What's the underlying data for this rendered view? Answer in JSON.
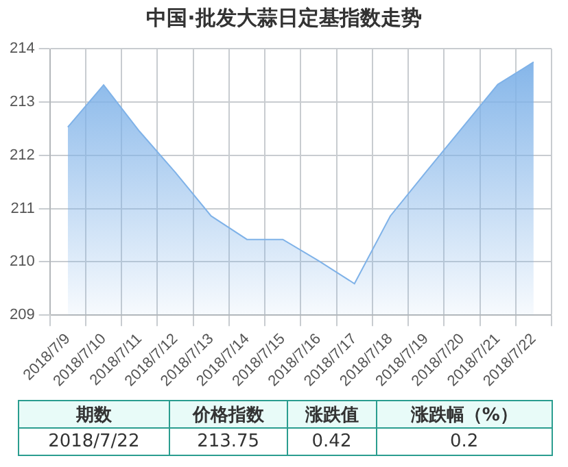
{
  "chart_data": {
    "type": "area",
    "title": "中国·批发大蒜日定基指数走势",
    "categories": [
      "2018/7/9",
      "2018/7/10",
      "2018/7/11",
      "2018/7/12",
      "2018/7/13",
      "2018/7/14",
      "2018/7/15",
      "2018/7/16",
      "2018/7/17",
      "2018/7/18",
      "2018/7/19",
      "2018/7/20",
      "2018/7/21",
      "2018/7/22"
    ],
    "series": [
      {
        "color": "#7fb2e8",
        "values": [
          212.53,
          213.32,
          212.45,
          211.68,
          210.86,
          210.42,
          210.42,
          210.02,
          209.59,
          210.86,
          211.69,
          212.51,
          213.33,
          213.75
        ]
      }
    ],
    "ylim": [
      209,
      214
    ],
    "yticks": [
      209,
      210,
      211,
      212,
      213,
      214
    ],
    "grid": true,
    "legend": false,
    "annotations": [
      "期数",
      "价格指数",
      "涨跌值",
      "涨跌幅（%）",
      "2018/7/22",
      "213.75",
      "0.42",
      "0.2"
    ]
  }
}
